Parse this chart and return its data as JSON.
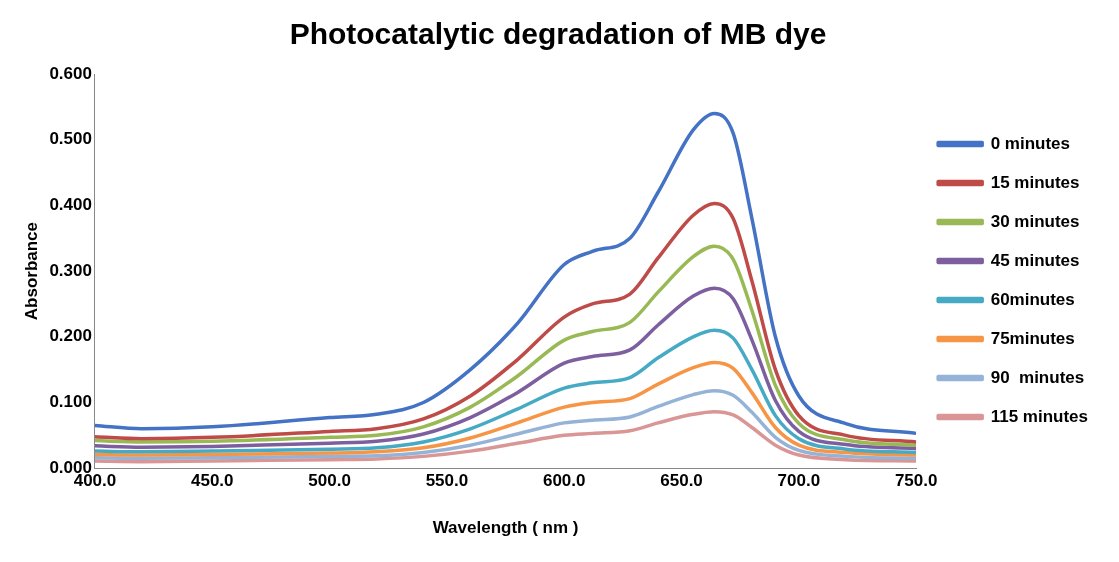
{
  "chart_data": {
    "type": "line",
    "title": "Photocatalytic degradation of MB dye",
    "xlabel": "Wavelength ( nm )",
    "ylabel": "Absorbance",
    "x": [
      400,
      420,
      450,
      500,
      520,
      540,
      560,
      580,
      600,
      612,
      628,
      640,
      655,
      664,
      672,
      680,
      690,
      700,
      720,
      750
    ],
    "series": [
      {
        "name": "0 minutes",
        "color": "#4472c4",
        "values": [
          0.065,
          0.06,
          0.063,
          0.077,
          0.082,
          0.1,
          0.15,
          0.22,
          0.31,
          0.33,
          0.35,
          0.42,
          0.515,
          0.54,
          0.51,
          0.38,
          0.2,
          0.11,
          0.068,
          0.053
        ]
      },
      {
        "name": "15 minutes",
        "color": "#be4b48",
        "values": [
          0.048,
          0.045,
          0.047,
          0.056,
          0.06,
          0.075,
          0.11,
          0.165,
          0.23,
          0.25,
          0.265,
          0.32,
          0.385,
          0.403,
          0.38,
          0.285,
          0.15,
          0.08,
          0.05,
          0.04
        ]
      },
      {
        "name": "30 minutes",
        "color": "#98b954",
        "values": [
          0.042,
          0.04,
          0.041,
          0.047,
          0.05,
          0.063,
          0.093,
          0.14,
          0.195,
          0.208,
          0.222,
          0.268,
          0.322,
          0.338,
          0.318,
          0.24,
          0.126,
          0.068,
          0.043,
          0.035
        ]
      },
      {
        "name": "45 minutes",
        "color": "#7d5fa0",
        "values": [
          0.034,
          0.032,
          0.033,
          0.038,
          0.041,
          0.052,
          0.077,
          0.115,
          0.16,
          0.17,
          0.18,
          0.218,
          0.262,
          0.274,
          0.258,
          0.195,
          0.103,
          0.056,
          0.036,
          0.03
        ]
      },
      {
        "name": "60minutes",
        "color": "#46aac5",
        "values": [
          0.026,
          0.025,
          0.026,
          0.029,
          0.031,
          0.04,
          0.06,
          0.09,
          0.122,
          0.13,
          0.138,
          0.168,
          0.2,
          0.21,
          0.198,
          0.15,
          0.08,
          0.045,
          0.029,
          0.024
        ]
      },
      {
        "name": "75minutes",
        "color": "#f69545",
        "values": [
          0.021,
          0.02,
          0.021,
          0.023,
          0.025,
          0.031,
          0.046,
          0.069,
          0.093,
          0.1,
          0.106,
          0.128,
          0.153,
          0.161,
          0.152,
          0.115,
          0.062,
          0.035,
          0.024,
          0.02
        ]
      },
      {
        "name": "90  minutes",
        "color": "#95b3d7",
        "values": [
          0.016,
          0.015,
          0.016,
          0.018,
          0.019,
          0.024,
          0.035,
          0.052,
          0.069,
          0.073,
          0.078,
          0.094,
          0.112,
          0.118,
          0.111,
          0.085,
          0.047,
          0.027,
          0.018,
          0.015
        ]
      },
      {
        "name": "115 minutes",
        "color": "#d99694",
        "values": [
          0.011,
          0.01,
          0.011,
          0.013,
          0.014,
          0.018,
          0.026,
          0.038,
          0.05,
          0.053,
          0.057,
          0.069,
          0.082,
          0.086,
          0.081,
          0.062,
          0.035,
          0.02,
          0.013,
          0.011
        ]
      }
    ],
    "xlim": [
      400,
      750
    ],
    "xticks": [
      {
        "value": 400,
        "label": "400.0"
      },
      {
        "value": 450,
        "label": "450.0"
      },
      {
        "value": 500,
        "label": "500.0"
      },
      {
        "value": 550,
        "label": "550.0"
      },
      {
        "value": 600,
        "label": "600.0"
      },
      {
        "value": 650,
        "label": "650.0"
      },
      {
        "value": 700,
        "label": "700.0"
      },
      {
        "value": 750,
        "label": "750.0"
      }
    ],
    "ylim": [
      0,
      0.6
    ],
    "yticks": [
      {
        "value": 0,
        "label": "0.000"
      },
      {
        "value": 0.1,
        "label": "0.100"
      },
      {
        "value": 0.2,
        "label": "0.200"
      },
      {
        "value": 0.3,
        "label": "0.300"
      },
      {
        "value": 0.4,
        "label": "0.400"
      },
      {
        "value": 0.5,
        "label": "0.500"
      },
      {
        "value": 0.6,
        "label": "0.600"
      }
    ],
    "grid": false,
    "legend": "right",
    "marker": "none",
    "line_style": "solid"
  }
}
